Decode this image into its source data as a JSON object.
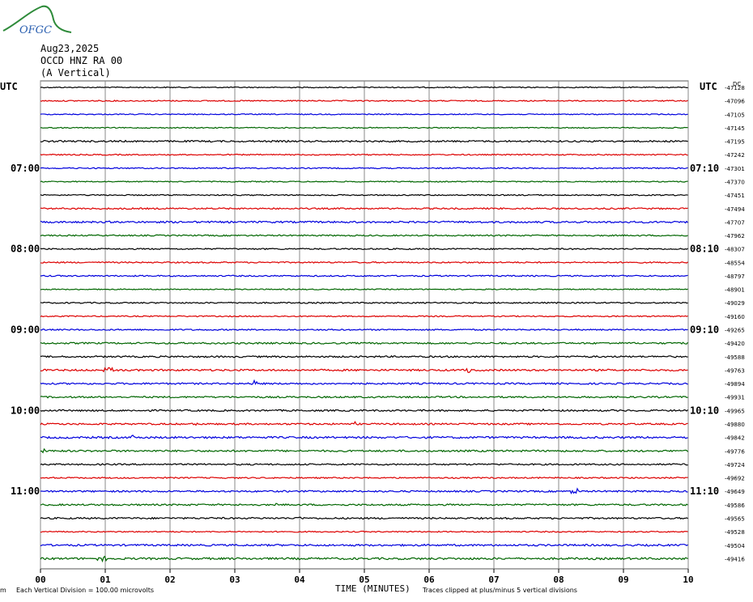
{
  "logo": {
    "text": "OFGC",
    "colors": {
      "arc": "#2e8b3a",
      "text": "#2a5fb0"
    }
  },
  "header": {
    "date": "Aug23,2025",
    "station": "OCCD HNZ RA 00",
    "component": "(A Vertical)"
  },
  "left_axis_title": "UTC",
  "right_axis_title": "UTC",
  "right_top_label": "DC",
  "footer": {
    "division": "Each Vertical Division =  100.00 microvolts",
    "clipped": "Traces clipped at plus/minus 5 vertical divisions",
    "corner_mark": "m"
  },
  "chart_data": {
    "type": "line",
    "subtype": "helicorder",
    "xlabel": "TIME (MINUTES)",
    "xlim": [
      0,
      10
    ],
    "x_ticks": [
      "00",
      "01",
      "02",
      "03",
      "04",
      "05",
      "06",
      "07",
      "08",
      "09",
      "10"
    ],
    "grid": true,
    "trace_colors": [
      "#000000",
      "#dd0000",
      "#0000dd",
      "#006600"
    ],
    "left_time_labels": [
      {
        "row": 6,
        "label": "07:00"
      },
      {
        "row": 12,
        "label": "08:00"
      },
      {
        "row": 18,
        "label": "09:00"
      },
      {
        "row": 24,
        "label": "10:00"
      },
      {
        "row": 30,
        "label": "11:00"
      }
    ],
    "right_time_labels": [
      {
        "row": 6,
        "label": "07:10"
      },
      {
        "row": 12,
        "label": "08:10"
      },
      {
        "row": 18,
        "label": "09:10"
      },
      {
        "row": 24,
        "label": "10:10"
      },
      {
        "row": 30,
        "label": "11:10"
      }
    ],
    "dc_offsets": [
      "-47128",
      "-47096",
      "-47105",
      "-47145",
      "-47195",
      "-47242",
      "-47301",
      "-47370",
      "-47451",
      "-47494",
      "-47707",
      "-47962",
      "-48307",
      "-48554",
      "-48797",
      "-48901",
      "-49029",
      "-49160",
      "-49265",
      "-49420",
      "-49588",
      "-49763",
      "-49894",
      "-49931",
      "-49965",
      "-49880",
      "-49842",
      "-49776",
      "-49724",
      "-49692",
      "-49649",
      "-49586",
      "-49565",
      "-49528",
      "-49504",
      "-49416"
    ],
    "noise_level": [
      0.6,
      0.7,
      0.6,
      0.6,
      1.0,
      0.7,
      0.7,
      0.6,
      0.7,
      0.9,
      1.1,
      0.8,
      0.8,
      0.8,
      0.8,
      0.6,
      0.8,
      0.7,
      0.8,
      1.0,
      1.0,
      1.1,
      1.0,
      1.0,
      1.0,
      1.0,
      1.2,
      1.1,
      0.9,
      0.8,
      1.0,
      1.0,
      1.0,
      0.7,
      1.1,
      1.2
    ],
    "events": [
      {
        "row": 21,
        "minute": 1.05,
        "amp": 3.5,
        "width": 0.12
      },
      {
        "row": 21,
        "minute": 6.6,
        "amp": 5,
        "width": 0.05
      },
      {
        "row": 22,
        "minute": 3.3,
        "amp": 3,
        "width": 0.1
      },
      {
        "row": 24,
        "minute": 7.75,
        "amp": 3,
        "width": 0.03
      },
      {
        "row": 25,
        "minute": 2.4,
        "amp": 3,
        "width": 0.04
      },
      {
        "row": 25,
        "minute": 4.85,
        "amp": 2.5,
        "width": 0.04
      },
      {
        "row": 26,
        "minute": 1.42,
        "amp": 6,
        "width": 0.06
      },
      {
        "row": 27,
        "minute": 0.05,
        "amp": 3,
        "width": 0.05
      },
      {
        "row": 30,
        "minute": 8.25,
        "amp": 6,
        "width": 0.08
      },
      {
        "row": 31,
        "minute": 3.65,
        "amp": 4,
        "width": 0.04
      },
      {
        "row": 32,
        "minute": 4.0,
        "amp": 2.5,
        "width": 0.05
      },
      {
        "row": 35,
        "minute": 0.95,
        "amp": 3.5,
        "width": 0.12
      }
    ]
  }
}
